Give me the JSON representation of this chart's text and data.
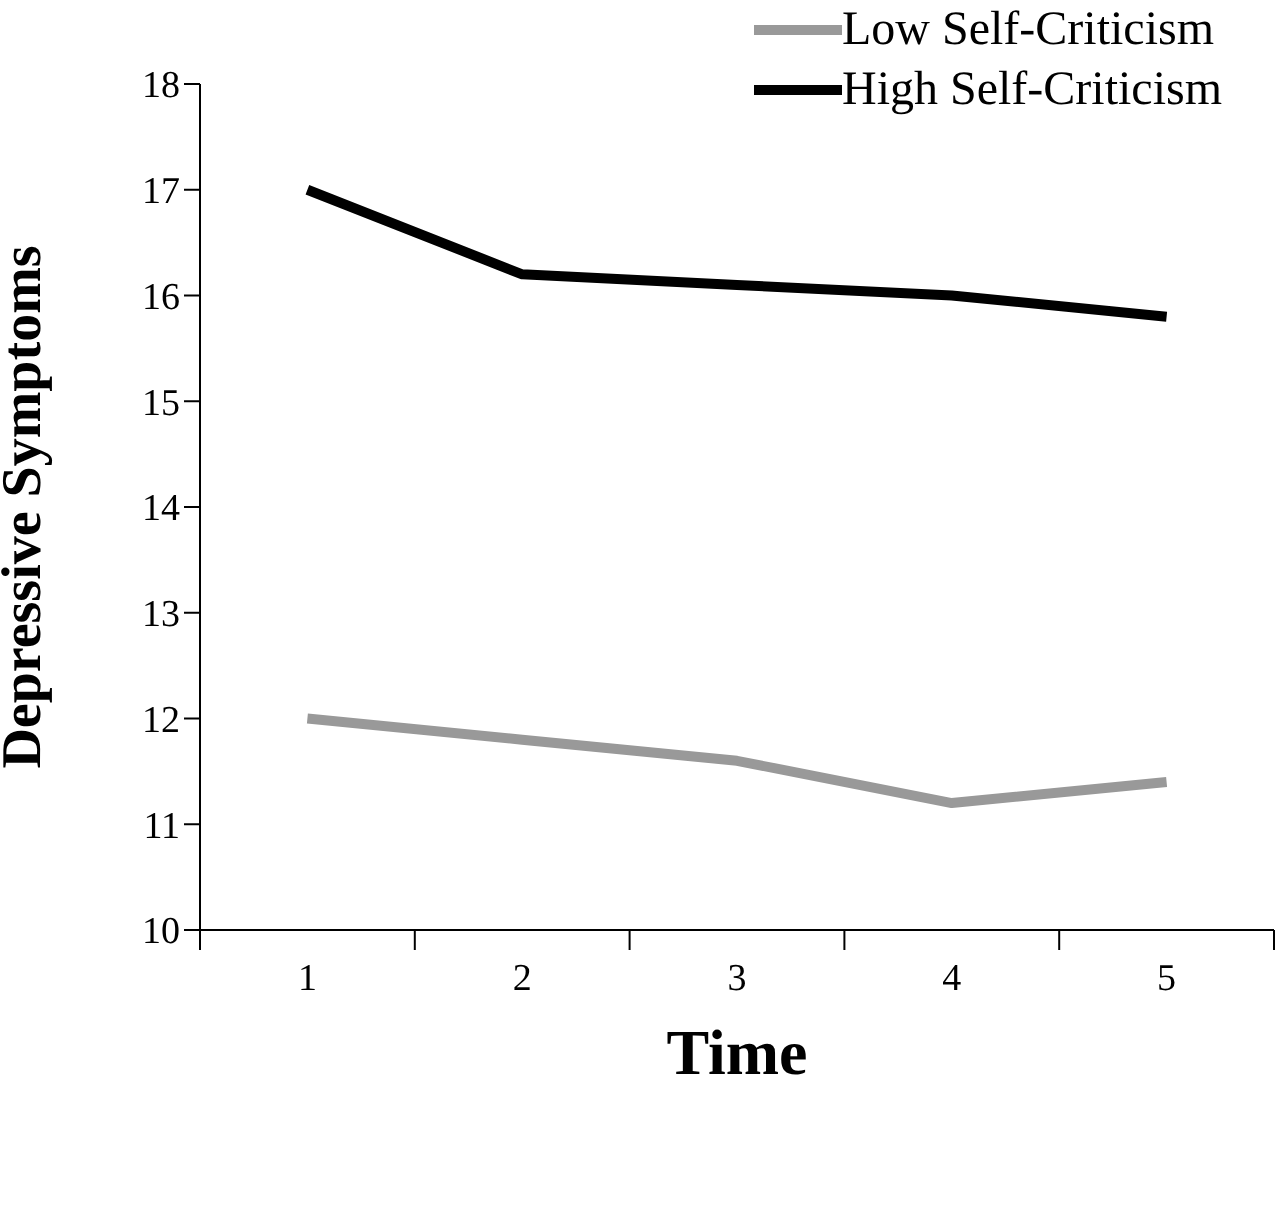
{
  "chart_data": {
    "type": "line",
    "xlabel": "Time",
    "ylabel": "Depressive Symptoms",
    "categories": [
      "1",
      "2",
      "3",
      "4",
      "5"
    ],
    "series": [
      {
        "name": "Low Self-Criticism",
        "color": "#999999",
        "values": [
          12,
          11.8,
          11.6,
          11.2,
          11.4
        ]
      },
      {
        "name": "High Self-Criticism",
        "color": "#000000",
        "values": [
          17,
          16.2,
          16.1,
          16.0,
          15.8
        ]
      }
    ],
    "ylim": [
      10,
      18
    ],
    "yticks": [
      10,
      11,
      12,
      13,
      14,
      15,
      16,
      17,
      18
    ],
    "grid": false,
    "legend": "top right",
    "marker": "none",
    "line_style": "solid"
  }
}
